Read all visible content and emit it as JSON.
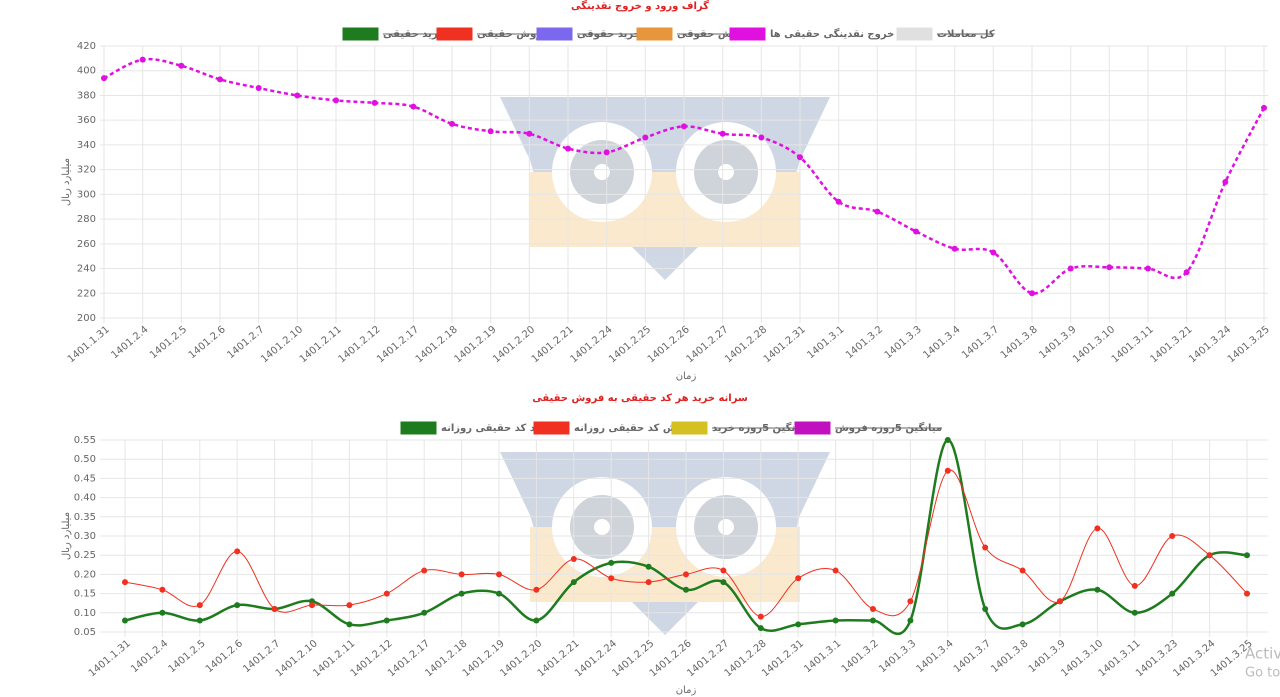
{
  "chart_data": [
    {
      "type": "line",
      "title": "گراف ورود و خروج نقدینگی",
      "ylabel": "میلیارد ریال",
      "xlabel": "زمان",
      "categories": [
        "1401.1.31",
        "1401.2.4",
        "1401.2.5",
        "1401.2.6",
        "1401.2.7",
        "1401.2.10",
        "1401.2.11",
        "1401.2.12",
        "1401.2.17",
        "1401.2.18",
        "1401.2.19",
        "1401.2.20",
        "1401.2.21",
        "1401.2.24",
        "1401.2.25",
        "1401.2.26",
        "1401.2.27",
        "1401.2.28",
        "1401.2.31",
        "1401.3.1",
        "1401.3.2",
        "1401.3.3",
        "1401.3.4",
        "1401.3.7",
        "1401.3.8",
        "1401.3.9",
        "1401.3.10",
        "1401.3.11",
        "1401.3.21",
        "1401.3.24",
        "1401.3.25"
      ],
      "series": [
        {
          "name": "خرید حقیقی",
          "color": "#1e7b1e",
          "hidden": true
        },
        {
          "name": "فروش حقیقی",
          "color": "#f03020",
          "hidden": true
        },
        {
          "name": "خرید حقوقی",
          "color": "#7b68ee",
          "hidden": true
        },
        {
          "name": "فروش حقوقی",
          "color": "#e8963c",
          "hidden": true
        },
        {
          "name": "ورود و خروج نقدینگی حقیقی ها",
          "color": "#e010e0",
          "dashed": true,
          "values": [
            394,
            409,
            404,
            393,
            386,
            380,
            376,
            374,
            371,
            357,
            351,
            349,
            337,
            334,
            346,
            355,
            349,
            346,
            330,
            294,
            286,
            270,
            256,
            253,
            220,
            240,
            241,
            240,
            237,
            310,
            370
          ]
        },
        {
          "name": "کل معاملات",
          "color": "#e0e0e0",
          "hidden": true
        }
      ],
      "ylim": [
        200,
        420
      ],
      "yticks": [
        200,
        220,
        240,
        260,
        280,
        300,
        320,
        340,
        360,
        380,
        400,
        420
      ],
      "grid": true
    },
    {
      "type": "line",
      "title": "سرانه خرید هر کد حقیقی به فروش حقیقی",
      "ylabel": "میلیارد ریال",
      "xlabel": "زمان",
      "categories": [
        "1401.1.31",
        "1401.2.4",
        "1401.2.5",
        "1401.2.6",
        "1401.2.7",
        "1401.2.10",
        "1401.2.11",
        "1401.2.12",
        "1401.2.17",
        "1401.2.18",
        "1401.2.19",
        "1401.2.20",
        "1401.2.21",
        "1401.2.24",
        "1401.2.25",
        "1401.2.26",
        "1401.2.27",
        "1401.2.28",
        "1401.2.31",
        "1401.3.1",
        "1401.3.2",
        "1401.3.3",
        "1401.3.4",
        "1401.3.7",
        "1401.3.8",
        "1401.3.9",
        "1401.3.10",
        "1401.3.11",
        "1401.3.23",
        "1401.3.24",
        "1401.3.25"
      ],
      "series": [
        {
          "name": "خرید کد حقیقی روزانه",
          "color": "#1e7b1e",
          "width": 2.5,
          "values": [
            0.08,
            0.1,
            0.08,
            0.12,
            0.11,
            0.13,
            0.07,
            0.08,
            0.1,
            0.15,
            0.15,
            0.08,
            0.18,
            0.23,
            0.22,
            0.16,
            0.18,
            0.06,
            0.07,
            0.08,
            0.08,
            0.08,
            0.55,
            0.11,
            0.07,
            0.13,
            0.16,
            0.1,
            0.15,
            0.25,
            0.25
          ]
        },
        {
          "name": "فروش کد حقیقی روزانه",
          "color": "#f03020",
          "width": 1,
          "values": [
            0.18,
            0.16,
            0.12,
            0.26,
            0.11,
            0.12,
            0.12,
            0.15,
            0.21,
            0.2,
            0.2,
            0.16,
            0.24,
            0.19,
            0.18,
            0.2,
            0.21,
            0.09,
            0.19,
            0.21,
            0.11,
            0.13,
            0.47,
            0.27,
            0.21,
            0.13,
            0.32,
            0.17,
            0.3,
            0.25,
            0.15
          ]
        },
        {
          "name": "میانگین 5روزه خرید",
          "color": "#d4c020",
          "hidden": true
        },
        {
          "name": "میانگین 5روزه فروش",
          "color": "#c010c0",
          "hidden": true
        }
      ],
      "ylim": [
        0.05,
        0.55
      ],
      "yticks": [
        0.05,
        {
          "value": 0.1,
          "label": "0.10"
        },
        0.15,
        {
          "value": 0.2,
          "label": "0.20"
        },
        0.25,
        {
          "value": 0.3,
          "label": "0.30"
        },
        0.35,
        {
          "value": 0.4,
          "label": "0.40"
        },
        0.45,
        {
          "value": 0.5,
          "label": "0.50"
        },
        0.55
      ],
      "grid": true
    }
  ],
  "os_watermark": [
    "Activ",
    "Go to"
  ]
}
